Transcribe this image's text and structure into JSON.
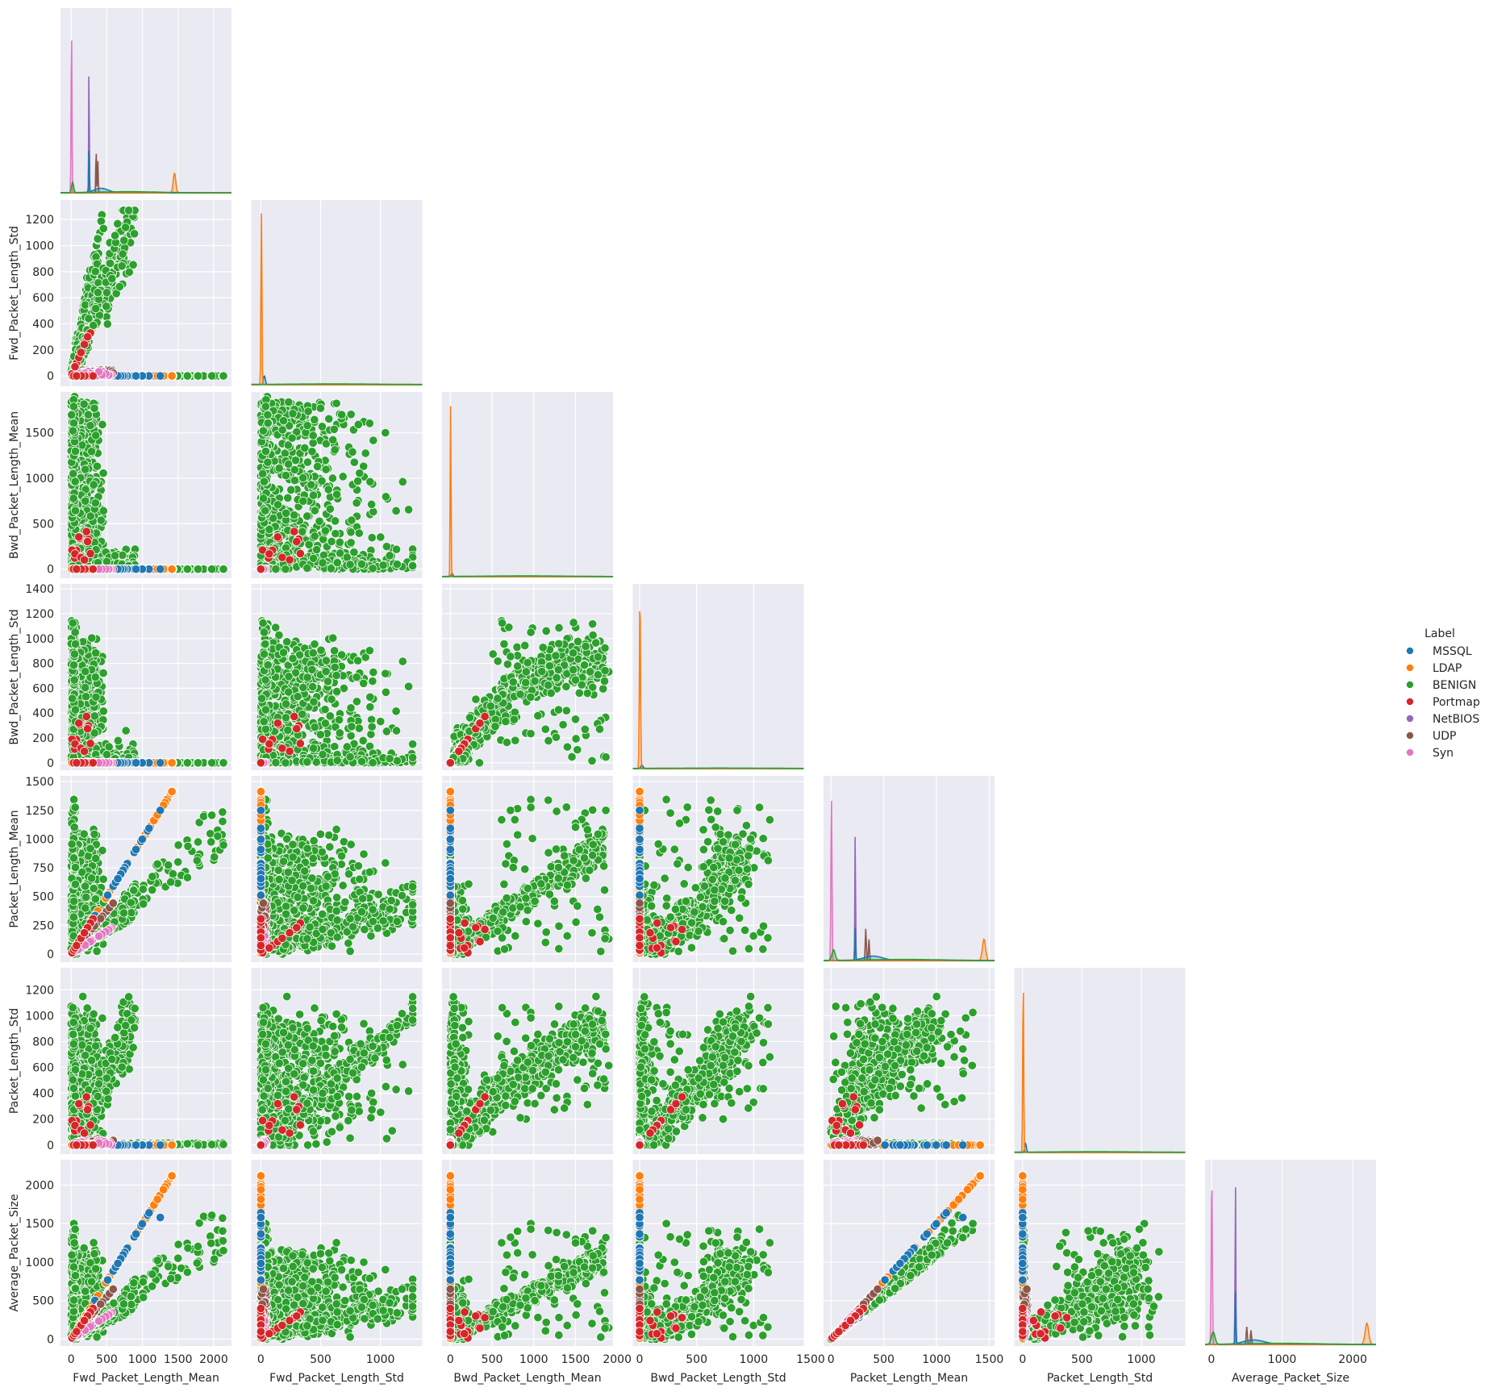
{
  "chart_data": {
    "type": "scatter",
    "kind": "pairplot-lower-corner",
    "diagonal": "kde-by-label",
    "grid": true,
    "legend_placement": "right",
    "legend": {
      "title": "Label",
      "entries": [
        {
          "name": "MSSQL",
          "color": "#1f77b4"
        },
        {
          "name": "LDAP",
          "color": "#ff7f0e"
        },
        {
          "name": "BENIGN",
          "color": "#2ca02c"
        },
        {
          "name": "Portmap",
          "color": "#d62728"
        },
        {
          "name": "NetBIOS",
          "color": "#9467bd"
        },
        {
          "name": "UDP",
          "color": "#8c564b"
        },
        {
          "name": "Syn",
          "color": "#e377c2"
        }
      ]
    },
    "variables": [
      {
        "name": "Fwd_Packet_Length_Mean",
        "lim": [
          -150,
          2250
        ],
        "ticks": [
          0,
          500,
          1000,
          1500,
          2000
        ]
      },
      {
        "name": "Fwd_Packet_Length_Std",
        "lim": [
          -80,
          1350
        ],
        "ticks": [
          0,
          200,
          400,
          600,
          800,
          1000,
          1200
        ],
        "xticks": [
          0,
          500,
          1000
        ]
      },
      {
        "name": "Bwd_Packet_Length_Mean",
        "lim": [
          -100,
          1950
        ],
        "ticks": [
          0,
          500,
          1000,
          1500
        ],
        "xticks": [
          0,
          500,
          1000,
          1500,
          2000
        ]
      },
      {
        "name": "Bwd_Packet_Length_Std",
        "lim": [
          -60,
          1440
        ],
        "ticks": [
          0,
          200,
          400,
          600,
          800,
          1000,
          1200,
          1400
        ],
        "xticks": [
          0,
          500,
          1000,
          1500
        ]
      },
      {
        "name": "Packet_Length_Mean",
        "lim": [
          -70,
          1550
        ],
        "ticks": [
          0,
          250,
          500,
          750,
          1000,
          1250,
          1500
        ],
        "xticks": [
          0,
          500,
          1000,
          1500
        ]
      },
      {
        "name": "Packet_Length_Std",
        "lim": [
          -70,
          1370
        ],
        "ticks": [
          0,
          200,
          400,
          600,
          800,
          1000,
          1200
        ],
        "xticks": [
          0,
          500,
          1000
        ]
      },
      {
        "name": "Average_Packet_Size",
        "lim": [
          -90,
          2330
        ],
        "ticks": [
          0,
          500,
          1000,
          1500,
          2000
        ],
        "xticks": [
          0,
          1000,
          2000
        ]
      }
    ]
  }
}
